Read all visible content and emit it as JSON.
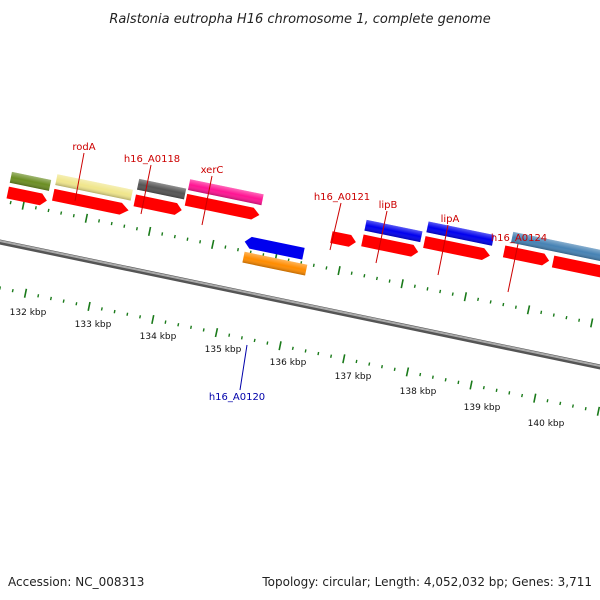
{
  "title": "Ralstonia eutropha H16 chromosome 1, complete genome",
  "footer": {
    "accession": "Accession: NC_008313",
    "summary": "Topology: circular; Length: 4,052,032 bp; Genes: 3,711"
  },
  "colors": {
    "cds": "#ff0000",
    "forward_label": "#cc0000",
    "reverse_label": "#0000aa",
    "tick": "#1a7a1a",
    "backbone": "#888888"
  },
  "scale_labels": [
    "132 kbp",
    "133 kbp",
    "134 kbp",
    "135 kbp",
    "136 kbp",
    "137 kbp",
    "138 kbp",
    "139 kbp",
    "140 kbp"
  ],
  "genes": [
    {
      "name": "rodA",
      "strand": "forward",
      "color": "#f0e68c"
    },
    {
      "name": "h16_A0118",
      "strand": "forward",
      "color": "#555555"
    },
    {
      "name": "xerC",
      "strand": "forward",
      "color": "#ff1493"
    },
    {
      "name": "h16_A0120",
      "strand": "reverse",
      "color": "#0000ee"
    },
    {
      "name": "h16_A0121",
      "strand": "forward",
      "color": "#ff0000"
    },
    {
      "name": "lipB",
      "strand": "forward",
      "color": "#0000ee"
    },
    {
      "name": "lipA",
      "strand": "forward",
      "color": "#0000ee"
    },
    {
      "name": "h16_A0124",
      "strand": "forward",
      "color": "#4682b4"
    }
  ]
}
